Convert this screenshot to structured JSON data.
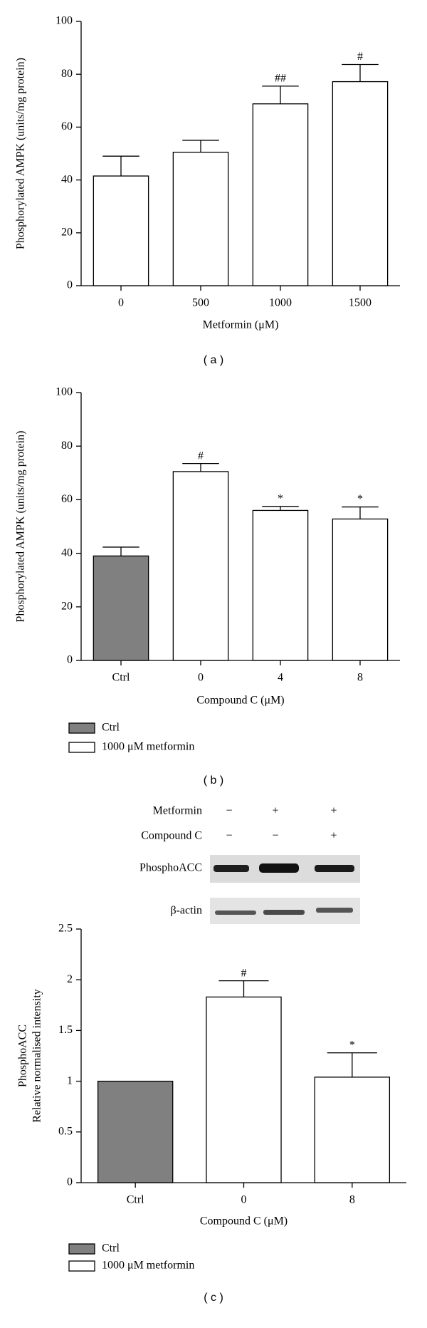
{
  "chart_data": [
    {
      "type": "bar",
      "panel": "( a )",
      "ylabel": [
        "Phosphorylated AMPK (units/mg protein)"
      ],
      "xlabel": "Metformin (μM)",
      "categories": [
        "0",
        "500",
        "1000",
        "1500"
      ],
      "series": [
        {
          "color": "#ffffff",
          "values": [
            41.5,
            50.5,
            68.8,
            77.2
          ],
          "errors": [
            7.5,
            4.5,
            6.7,
            6.5
          ]
        }
      ],
      "markers": [
        null,
        null,
        "##",
        "#"
      ],
      "ylim": [
        0,
        100
      ],
      "yticks": [
        0,
        20,
        40,
        60,
        80,
        100
      ]
    },
    {
      "type": "bar",
      "panel": "( b )",
      "ylabel": [
        "Phosphorylated AMPK (units/mg protein)"
      ],
      "xlabel": "Compound C (μM)",
      "categories": [
        "Ctrl",
        "0",
        "4",
        "8"
      ],
      "series": [
        {
          "name": "Ctrl",
          "color": "#808080",
          "values": [
            39,
            null,
            null,
            null
          ],
          "errors": [
            3.3,
            null,
            null,
            null
          ]
        },
        {
          "name": "1000 μM metformin",
          "color": "#ffffff",
          "values": [
            null,
            70.5,
            56,
            52.8
          ],
          "errors": [
            null,
            3,
            1.5,
            4.5
          ]
        }
      ],
      "markers": [
        null,
        "#",
        "*",
        "*"
      ],
      "ylim": [
        0,
        100
      ],
      "yticks": [
        0,
        20,
        40,
        60,
        80,
        100
      ]
    },
    {
      "type": "bar",
      "panel": "( c )",
      "ylabel": [
        "PhosphoACC",
        "Relative normalised intensity"
      ],
      "xlabel": "Compound C (μM)",
      "categories": [
        "Ctrl",
        "0",
        "8"
      ],
      "series": [
        {
          "name": "Ctrl",
          "color": "#808080",
          "values": [
            1,
            null,
            null
          ],
          "errors": [
            null,
            null,
            null
          ]
        },
        {
          "name": "1000 μM metformin",
          "color": "#ffffff",
          "values": [
            null,
            1.83,
            1.04
          ],
          "errors": [
            null,
            0.16,
            0.24
          ]
        }
      ],
      "markers": [
        null,
        "#",
        "*"
      ],
      "ylim": [
        0,
        2.5
      ],
      "yticks": [
        0,
        0.5,
        1,
        1.5,
        2,
        2.5
      ],
      "blot": {
        "conditions": [
          {
            "label": "Metformin",
            "signs": [
              "−",
              "+",
              "+"
            ]
          },
          {
            "label": "Compound C",
            "signs": [
              "−",
              "−",
              "+"
            ]
          }
        ],
        "bands": [
          "PhosphoACC",
          "β-actin"
        ]
      }
    }
  ]
}
